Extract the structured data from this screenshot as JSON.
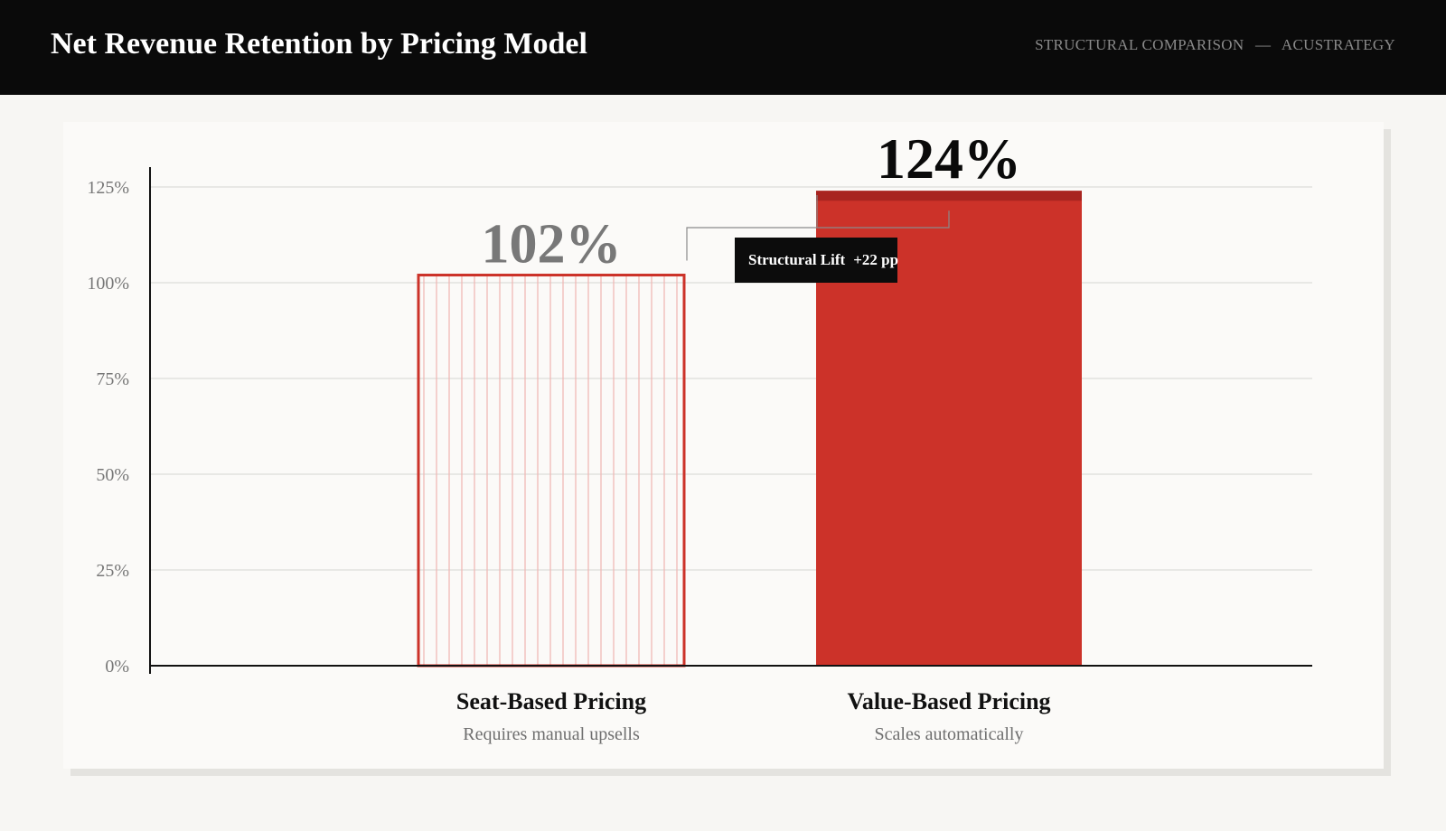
{
  "header": {
    "title": "Net Revenue Retention by Pricing Model",
    "tag_left": "STRUCTURAL COMPARISON",
    "tag_sep": "—",
    "tag_right": "ACUSTRATEGY"
  },
  "callout": {
    "label": "Structural Lift",
    "value": "+22 pp"
  },
  "colors": {
    "accent": "#cc3229",
    "accent_dark": "#a82420",
    "muted_value": "#787878",
    "strong_value": "#0a0a0a"
  },
  "chart_data": {
    "type": "bar",
    "title": "Net Revenue Retention by Pricing Model",
    "xlabel": "",
    "ylabel": "",
    "ylim": [
      0,
      125
    ],
    "yticks": [
      0,
      25,
      50,
      75,
      100,
      125
    ],
    "ytick_labels": [
      "0%",
      "25%",
      "50%",
      "75%",
      "100%",
      "125%"
    ],
    "grid": true,
    "legend": "none",
    "categories": [
      "Seat-Based Pricing",
      "Value-Based Pricing"
    ],
    "subtitles": [
      "Requires manual upsells",
      "Scales automatically"
    ],
    "values": [
      102,
      124
    ],
    "value_labels": [
      "102%",
      "124%"
    ],
    "styles": [
      "hatched-outline",
      "solid"
    ]
  }
}
